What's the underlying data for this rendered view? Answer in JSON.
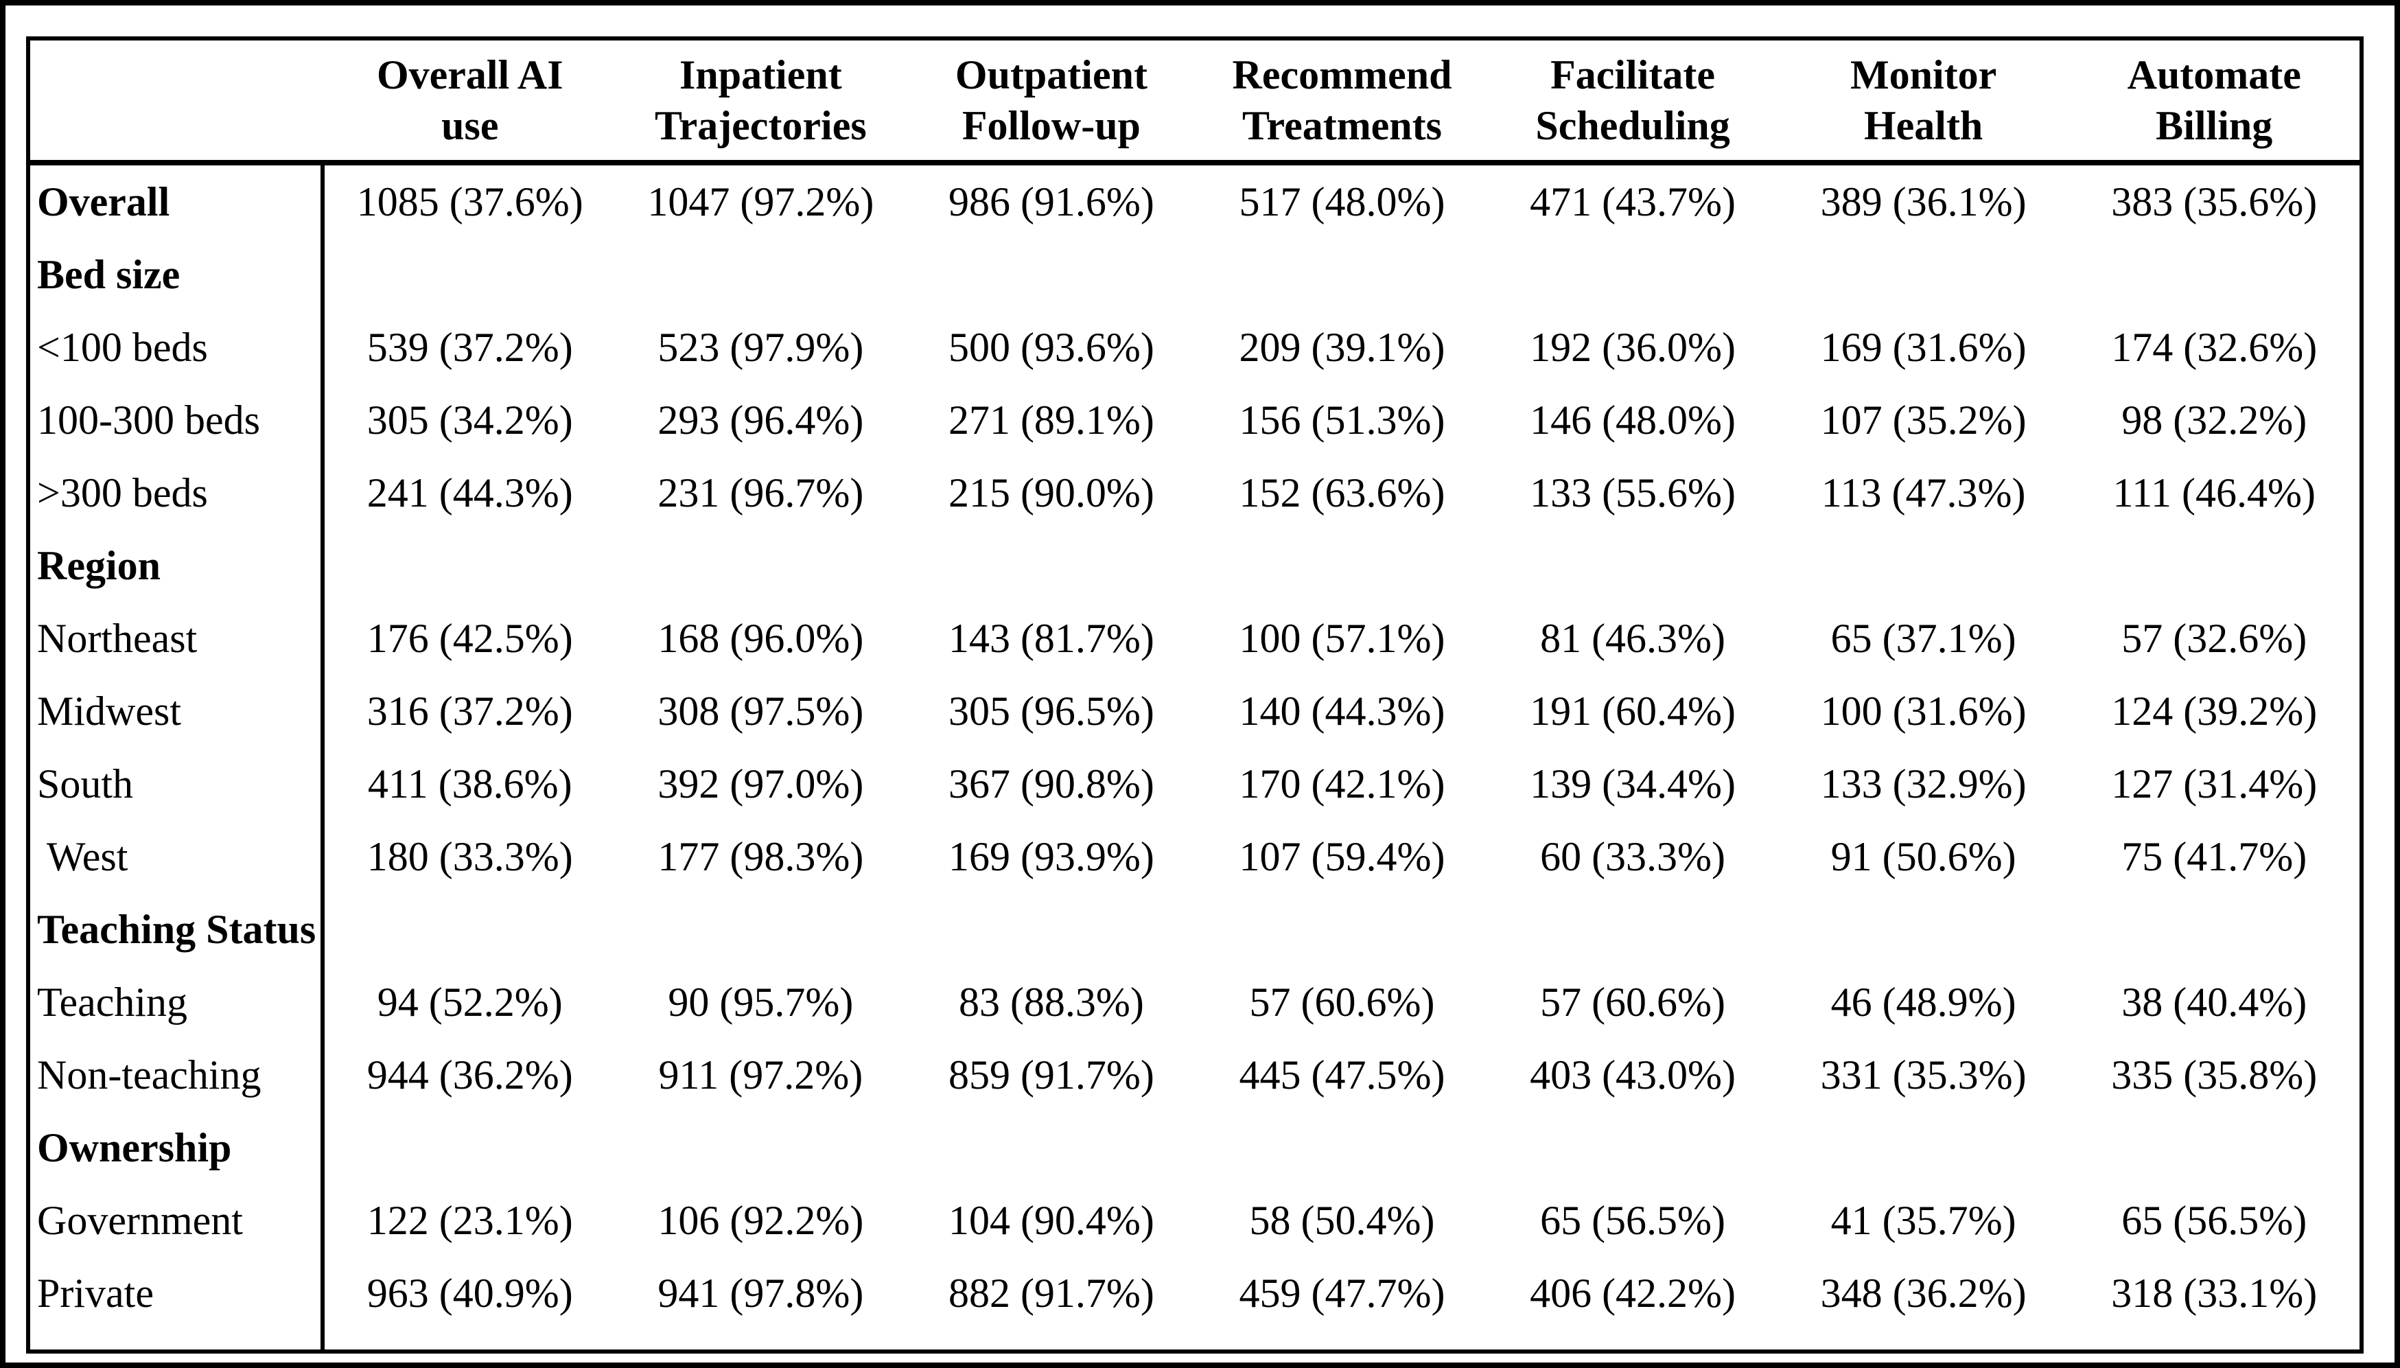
{
  "table": {
    "header": {
      "corner": "",
      "columns": [
        {
          "line1": "Overall AI",
          "line2": "use"
        },
        {
          "line1": "Inpatient",
          "line2": "Trajectories"
        },
        {
          "line1": "Outpatient",
          "line2": "Follow-up"
        },
        {
          "line1": "Recommend",
          "line2": "Treatments"
        },
        {
          "line1": "Facilitate",
          "line2": "Scheduling"
        },
        {
          "line1": "Monitor",
          "line2": "Health"
        },
        {
          "line1": "Automate",
          "line2": "Billing"
        }
      ]
    },
    "rows": [
      {
        "label": "Overall",
        "cells": [
          "1085 (37.6%)",
          "1047 (97.2%)",
          "986 (91.6%)",
          "517 (48.0%)",
          "471 (43.7%)",
          "389 (36.1%)",
          "383 (35.6%)"
        ]
      },
      {
        "label": "Bed size",
        "cells": [
          "",
          "",
          "",
          "",
          "",
          "",
          ""
        ]
      },
      {
        "label": "<100 beds",
        "cells": [
          "539 (37.2%)",
          "523 (97.9%)",
          "500 (93.6%)",
          "209 (39.1%)",
          "192 (36.0%)",
          "169 (31.6%)",
          "174 (32.6%)"
        ]
      },
      {
        "label": "100-300 beds",
        "cells": [
          "305 (34.2%)",
          "293 (96.4%)",
          "271 (89.1%)",
          "156 (51.3%)",
          "146 (48.0%)",
          "107 (35.2%)",
          "98 (32.2%)"
        ]
      },
      {
        "label": ">300 beds",
        "cells": [
          "241 (44.3%)",
          "231 (96.7%)",
          "215 (90.0%)",
          "152 (63.6%)",
          "133 (55.6%)",
          "113 (47.3%)",
          "111 (46.4%)"
        ]
      },
      {
        "label": "Region",
        "cells": [
          "",
          "",
          "",
          "",
          "",
          "",
          ""
        ]
      },
      {
        "label": "Northeast",
        "cells": [
          "176 (42.5%)",
          "168 (96.0%)",
          "143 (81.7%)",
          "100 (57.1%)",
          "81 (46.3%)",
          "65 (37.1%)",
          "57 (32.6%)"
        ]
      },
      {
        "label": "Midwest",
        "cells": [
          "316 (37.2%)",
          "308 (97.5%)",
          "305 (96.5%)",
          "140 (44.3%)",
          "191 (60.4%)",
          "100 (31.6%)",
          "124 (39.2%)"
        ]
      },
      {
        "label": "South",
        "cells": [
          "411 (38.6%)",
          "392 (97.0%)",
          "367 (90.8%)",
          "170 (42.1%)",
          "139 (34.4%)",
          "133 (32.9%)",
          "127 (31.4%)"
        ]
      },
      {
        "label": " West",
        "cells": [
          "180 (33.3%)",
          "177 (98.3%)",
          "169 (93.9%)",
          "107 (59.4%)",
          "60 (33.3%)",
          "91 (50.6%)",
          "75 (41.7%)"
        ]
      },
      {
        "label": "Teaching Status",
        "cells": [
          "",
          "",
          "",
          "",
          "",
          "",
          ""
        ]
      },
      {
        "label": "Teaching",
        "cells": [
          "94 (52.2%)",
          "90 (95.7%)",
          "83 (88.3%)",
          "57 (60.6%)",
          "57 (60.6%)",
          "46 (48.9%)",
          "38 (40.4%)"
        ]
      },
      {
        "label": "Non-teaching",
        "cells": [
          "944 (36.2%)",
          "911 (97.2%)",
          "859 (91.7%)",
          "445 (47.5%)",
          "403 (43.0%)",
          "331 (35.3%)",
          "335 (35.8%)"
        ]
      },
      {
        "label": "Ownership",
        "cells": [
          "",
          "",
          "",
          "",
          "",
          "",
          ""
        ]
      },
      {
        "label": "Government",
        "cells": [
          "122 (23.1%)",
          "106 (92.2%)",
          "104 (90.4%)",
          "58 (50.4%)",
          "65 (56.5%)",
          "41 (35.7%)",
          "65 (56.5%)"
        ]
      },
      {
        "label": "Private",
        "cells": [
          "963 (40.9%)",
          "941 (97.8%)",
          "882 (91.7%)",
          "459 (47.7%)",
          "406 (42.2%)",
          "348 (36.2%)",
          "318 (33.1%)"
        ]
      }
    ]
  }
}
